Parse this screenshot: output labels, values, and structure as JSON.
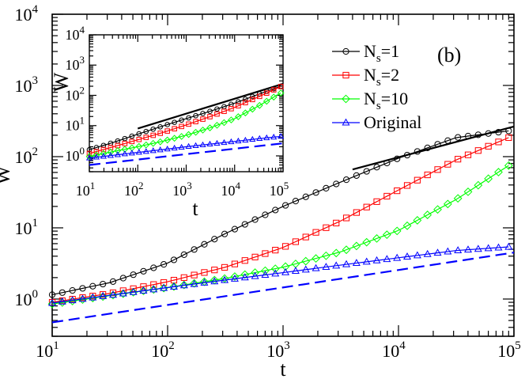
{
  "chart_data": [
    {
      "type": "line",
      "role": "main",
      "xscale": "log",
      "yscale": "log",
      "xlim": [
        10,
        100000
      ],
      "ylim": [
        0.3,
        10000
      ],
      "xlabel": "t",
      "ylabel": "W",
      "panel_label": "(b)",
      "xticks": [
        {
          "value": 10,
          "base": "10",
          "exp": "1"
        },
        {
          "value": 100,
          "base": "10",
          "exp": "2"
        },
        {
          "value": 1000,
          "base": "10",
          "exp": "3"
        },
        {
          "value": 10000,
          "base": "10",
          "exp": "4"
        },
        {
          "value": 100000,
          "base": "10",
          "exp": "5"
        }
      ],
      "yticks": [
        {
          "value": 1,
          "base": "10",
          "exp": "0"
        },
        {
          "value": 10,
          "base": "10",
          "exp": "1"
        },
        {
          "value": 100,
          "base": "10",
          "exp": "2"
        },
        {
          "value": 1000,
          "base": "10",
          "exp": "3"
        },
        {
          "value": 10000,
          "base": "10",
          "exp": "4"
        }
      ],
      "series": [
        {
          "name": "Ns=1",
          "label_main": "N",
          "label_sub": "s",
          "label_rest": "=1",
          "color": "#000000",
          "marker": "circle",
          "x": [
            10,
            31.6,
            100,
            316,
            1000,
            3160,
            10000,
            31600,
            90000
          ],
          "y": [
            1.15,
            1.7,
            3.2,
            8.3,
            20,
            44,
            95,
            185,
            230
          ]
        },
        {
          "name": "Ns=2",
          "label_main": "N",
          "label_sub": "s",
          "label_rest": "=2",
          "color": "#ff0000",
          "marker": "square",
          "x": [
            10,
            31.6,
            100,
            316,
            1000,
            3160,
            10000,
            31600,
            90000
          ],
          "y": [
            0.9,
            1.2,
            1.75,
            2.8,
            5.3,
            12.5,
            34,
            90,
            185
          ]
        },
        {
          "name": "Ns=10",
          "label_main": "N",
          "label_sub": "s",
          "label_rest": "=10",
          "color": "#00ff00",
          "marker": "diamond",
          "x": [
            10,
            31.6,
            100,
            316,
            1000,
            3160,
            10000,
            31600,
            90000
          ],
          "y": [
            0.85,
            1.12,
            1.45,
            1.95,
            2.8,
            4.6,
            9.2,
            25,
            75
          ]
        },
        {
          "name": "Original",
          "label_main": "Original",
          "label_sub": "",
          "label_rest": "",
          "color": "#0000ff",
          "marker": "triangle",
          "x": [
            10,
            31.6,
            100,
            316,
            1000,
            3160,
            10000,
            31600,
            90000
          ],
          "y": [
            0.88,
            1.13,
            1.45,
            1.85,
            2.35,
            3.0,
            3.8,
            4.8,
            5.4
          ]
        }
      ],
      "reference_lines": [
        {
          "name": "slope-line-black",
          "color": "#000000",
          "dashed": false,
          "x": [
            4000,
            100000
          ],
          "y": [
            66,
            265
          ]
        },
        {
          "name": "slope-line-blue-dashed",
          "color": "#0000ff",
          "dashed": true,
          "x": [
            10,
            100000
          ],
          "y": [
            0.47,
            4.5
          ]
        }
      ]
    },
    {
      "type": "line",
      "role": "inset",
      "xscale": "log",
      "yscale": "log",
      "xlim": [
        10,
        100000
      ],
      "ylim": [
        0.3,
        10000
      ],
      "xlabel": "t",
      "ylabel": "W",
      "xticks": [
        {
          "value": 10,
          "base": "10",
          "exp": "1"
        },
        {
          "value": 100,
          "base": "10",
          "exp": "2"
        },
        {
          "value": 1000,
          "base": "10",
          "exp": "3"
        },
        {
          "value": 10000,
          "base": "10",
          "exp": "4"
        },
        {
          "value": 100000,
          "base": "10",
          "exp": "5"
        }
      ],
      "yticks": [
        {
          "value": 1,
          "base": "10",
          "exp": "0"
        },
        {
          "value": 10,
          "base": "10",
          "exp": "1"
        },
        {
          "value": 100,
          "base": "10",
          "exp": "2"
        },
        {
          "value": 1000,
          "base": "10",
          "exp": "3"
        },
        {
          "value": 10000,
          "base": "10",
          "exp": "4"
        }
      ],
      "series": [
        {
          "name": "Ns=1",
          "color": "#000000",
          "marker": "circle",
          "x": [
            10,
            31.6,
            100,
            316,
            1000,
            3160,
            10000,
            31600,
            90000
          ],
          "y": [
            1.6,
            2.8,
            5.2,
            9.5,
            17,
            30,
            55,
            110,
            200
          ]
        },
        {
          "name": "Ns=2",
          "color": "#ff0000",
          "marker": "square",
          "x": [
            10,
            31.6,
            100,
            316,
            1000,
            3160,
            10000,
            31600,
            90000
          ],
          "y": [
            1.2,
            2.0,
            3.4,
            5.8,
            10.5,
            20,
            40,
            90,
            195
          ]
        },
        {
          "name": "Ns=10",
          "color": "#00ff00",
          "marker": "diamond",
          "x": [
            10,
            31.6,
            100,
            316,
            1000,
            3160,
            10000,
            31600,
            90000
          ],
          "y": [
            0.95,
            1.4,
            2.0,
            3.0,
            4.8,
            8.5,
            17,
            45,
            120
          ]
        },
        {
          "name": "Original",
          "color": "#0000ff",
          "marker": "triangle",
          "x": [
            10,
            31.6,
            100,
            316,
            1000,
            3160,
            10000,
            31600,
            90000
          ],
          "y": [
            0.85,
            1.05,
            1.3,
            1.6,
            2.0,
            2.45,
            3.0,
            3.7,
            4.4
          ]
        }
      ],
      "reference_lines": [
        {
          "name": "inset-slope-line-black",
          "color": "#000000",
          "dashed": false,
          "x": [
            100,
            100000
          ],
          "y": [
            8,
            240
          ]
        },
        {
          "name": "inset-slope-line-blue-dashed",
          "color": "#0000ff",
          "dashed": true,
          "x": [
            10,
            100000
          ],
          "y": [
            0.5,
            2.6
          ]
        }
      ]
    }
  ]
}
